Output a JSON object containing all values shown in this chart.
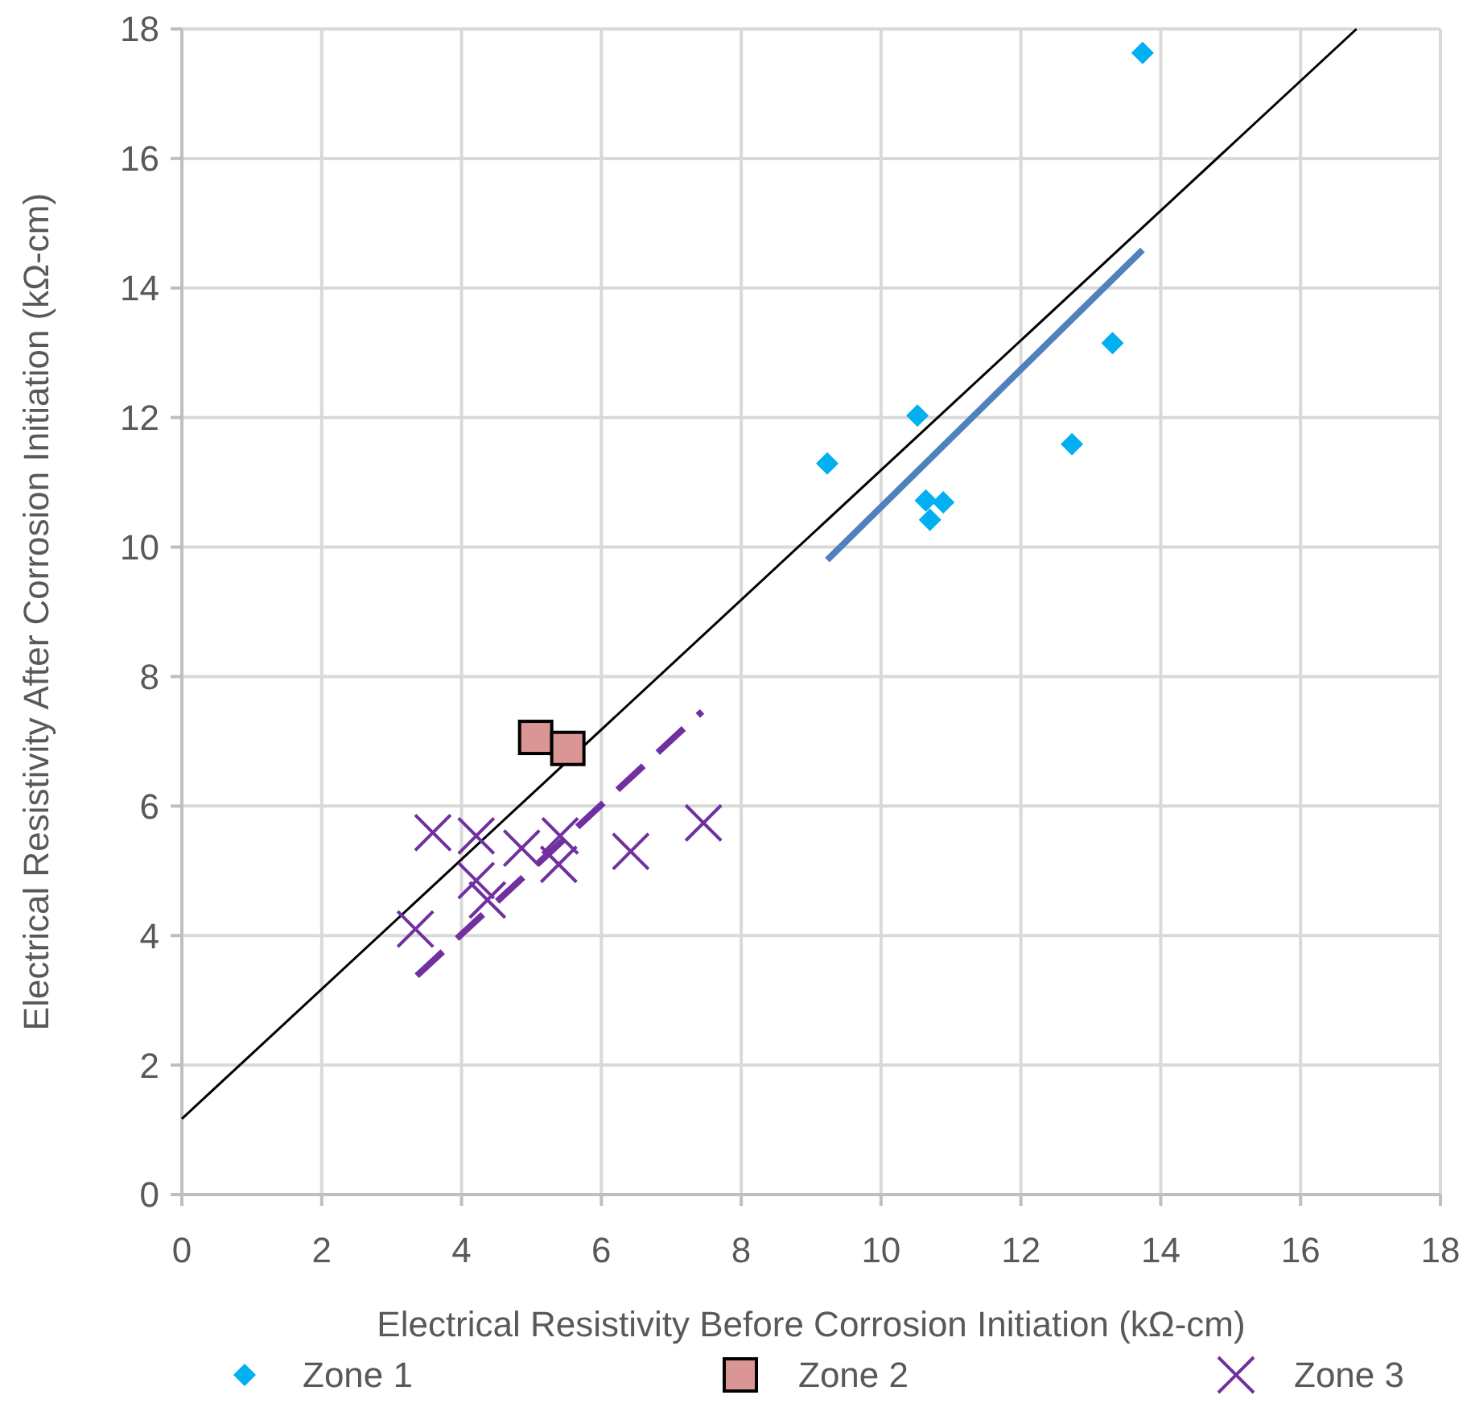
{
  "chart_data": {
    "type": "scatter",
    "xlabel": "Electrical Resistivity Before Corrosion Initiation (kΩ-cm)",
    "ylabel": "Electrical Resistivity After Corrosion Initiation (kΩ-cm)",
    "xlim": [
      0,
      18
    ],
    "ylim": [
      0,
      18
    ],
    "xticks": [
      0,
      2,
      4,
      6,
      8,
      10,
      12,
      14,
      16,
      18
    ],
    "yticks": [
      0,
      2,
      4,
      6,
      8,
      10,
      12,
      14,
      16,
      18
    ],
    "grid": true,
    "legend": "bottom",
    "series": [
      {
        "type": "line",
        "color": "#000000",
        "x": [
          0,
          16.8
        ],
        "values": [
          1.17,
          18
        ],
        "line_style": "solid",
        "marker": "none"
      },
      {
        "type": "line",
        "color": "#4f81bd",
        "x": [
          9.23,
          13.74
        ],
        "values": [
          9.8,
          14.59
        ],
        "line_style": "solid",
        "marker": "none"
      },
      {
        "type": "line",
        "color": "#7030a0",
        "x": [
          3.36,
          7.44
        ],
        "values": [
          3.38,
          7.46
        ],
        "line_style": "dashed",
        "marker": "none"
      },
      {
        "name": "Zone 1",
        "type": "scatter",
        "marker": "diamond",
        "color": "#00b0f0",
        "x": [
          9.23,
          10.52,
          10.64,
          10.89,
          10.7,
          12.73,
          13.31,
          13.74
        ],
        "values": [
          11.29,
          12.03,
          10.72,
          10.69,
          10.42,
          11.59,
          13.15,
          17.63
        ]
      },
      {
        "name": "Zone 2",
        "type": "scatter",
        "marker": "square",
        "color": "#d99694",
        "x": [
          5.06,
          5.52
        ],
        "values": [
          7.06,
          6.89
        ]
      },
      {
        "name": "Zone 3",
        "type": "scatter",
        "marker": "cross",
        "color": "#7030a0",
        "x": [
          3.59,
          4.21,
          4.86,
          5.41,
          4.21,
          4.37,
          5.39,
          6.42,
          7.46,
          3.34
        ],
        "values": [
          5.59,
          5.54,
          5.35,
          5.54,
          4.85,
          4.55,
          5.1,
          5.3,
          5.74,
          4.1
        ]
      }
    ]
  }
}
